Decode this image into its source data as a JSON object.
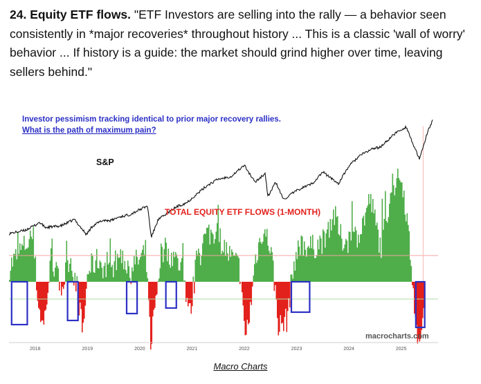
{
  "header": {
    "number_title": "24. Equity ETF flows.",
    "quote": " \"ETF Investors are selling into the rally — a behavior seen consistently in *major recoveries* throughout history ... This is a classic 'wall of worry' behavior ... If history is a guide: the market should grind higher over time, leaving sellers behind.\""
  },
  "caption": "Macro Charts",
  "chart_data": {
    "type": "line+area",
    "annotation_line1": "Investor pessimism tracking identical to prior major recovery rallies.",
    "annotation_line2": "What is the path of maximum pain?",
    "sp_label": "S&P",
    "flows_label": "TOTAL EQUITY ETF FLOWS (1-MONTH)",
    "watermark": "macrocharts.com",
    "x_ticks": [
      "2018",
      "2019",
      "2020",
      "2021",
      "2022",
      "2023",
      "2024",
      "2025"
    ],
    "sp_series": {
      "name": "S&P",
      "x": [
        2017.5,
        2017.8,
        2018.0,
        2018.08,
        2018.2,
        2018.5,
        2018.75,
        2018.98,
        2019.1,
        2019.3,
        2019.45,
        2019.6,
        2019.8,
        2020.05,
        2020.15,
        2020.22,
        2020.35,
        2020.5,
        2020.7,
        2020.9,
        2021.1,
        2021.3,
        2021.5,
        2021.75,
        2022.0,
        2022.2,
        2022.4,
        2022.45,
        2022.6,
        2022.75,
        2022.95,
        2023.1,
        2023.3,
        2023.5,
        2023.8,
        2024.0,
        2024.2,
        2024.45,
        2024.6,
        2024.9,
        2025.1,
        2025.25,
        2025.35,
        2025.5,
        2025.6
      ],
      "y": [
        2430,
        2540,
        2720,
        2820,
        2640,
        2700,
        2920,
        2400,
        2700,
        2890,
        2880,
        3000,
        3080,
        3300,
        3380,
        2300,
        2900,
        3100,
        3350,
        3500,
        3800,
        4100,
        4300,
        4400,
        4780,
        4200,
        4500,
        3700,
        4200,
        3600,
        3850,
        4000,
        4150,
        4550,
        4150,
        4750,
        5100,
        5350,
        5400,
        5900,
        6100,
        5400,
        4980,
        5900,
        6300
      ]
    },
    "flows_series": {
      "name": "Total Equity ETF Flows (1-Month)",
      "x": [
        2017.5,
        2017.7,
        2017.95,
        2018.05,
        2018.15,
        2018.3,
        2018.5,
        2018.65,
        2018.8,
        2018.9,
        2019.0,
        2019.2,
        2019.4,
        2019.6,
        2019.8,
        2020.0,
        2020.1,
        2020.2,
        2020.4,
        2020.6,
        2020.8,
        2020.95,
        2021.1,
        2021.3,
        2021.5,
        2021.7,
        2021.9,
        2022.0,
        2022.1,
        2022.2,
        2022.35,
        2022.5,
        2022.65,
        2022.8,
        2022.95,
        2023.1,
        2023.3,
        2023.5,
        2023.7,
        2023.85,
        2024.0,
        2024.2,
        2024.4,
        2024.6,
        2024.8,
        2025.0,
        2025.1,
        2025.2,
        2025.3,
        2025.45
      ],
      "y": [
        40,
        80,
        120,
        -60,
        -120,
        60,
        -20,
        70,
        -20,
        -140,
        30,
        60,
        20,
        70,
        40,
        60,
        80,
        -160,
        80,
        70,
        40,
        -90,
        80,
        130,
        120,
        70,
        40,
        -150,
        -80,
        60,
        140,
        90,
        -120,
        -100,
        60,
        100,
        90,
        110,
        180,
        110,
        110,
        130,
        220,
        90,
        240,
        280,
        170,
        30,
        -180,
        -70
      ]
    },
    "highlight_periods": [
      [
        2017.55,
        2017.85
      ],
      [
        2018.62,
        2018.82
      ],
      [
        2019.75,
        2019.95
      ],
      [
        2020.5,
        2020.7
      ],
      [
        2022.9,
        2023.25
      ],
      [
        2025.28,
        2025.45
      ]
    ]
  }
}
